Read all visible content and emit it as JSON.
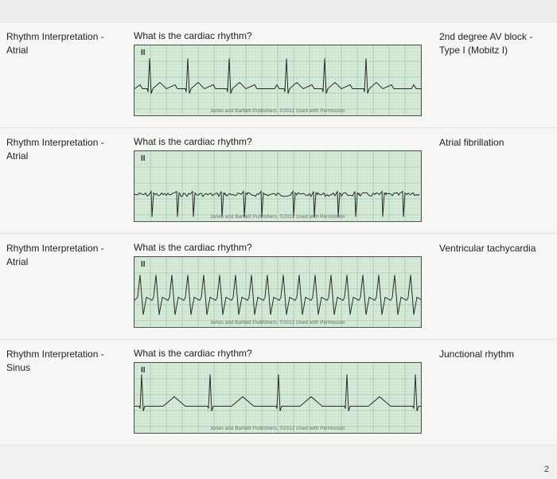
{
  "grid": {
    "bg_color": "#d9ecdb",
    "minor_color": "#bcd9c1",
    "major_color": "#9bc7a4",
    "minor_spacing": 4,
    "major_spacing": 20
  },
  "ecg_trace": {
    "stroke": "#2b2b2b",
    "stroke_width": 1
  },
  "attribution": "Jones and Bartlett Publishers. ©2012 Used with Permission",
  "page_number": "2",
  "cards": [
    {
      "category": "Rhythm Interpretation - Atrial",
      "question": "What is the cardiac rhythm?",
      "lead": "II",
      "answer": "2nd degree AV block - Type I (Mobitz I)",
      "waveform": "wenckebach"
    },
    {
      "category": "Rhythm Interpretation - Atrial",
      "question": "What is the cardiac rhythm?",
      "lead": "II",
      "answer": "Atrial fibrillation",
      "waveform": "afib"
    },
    {
      "category": "Rhythm Interpretation - Atrial",
      "question": "What is the cardiac rhythm?",
      "lead": "II",
      "answer": "Ventricular tachycardia",
      "waveform": "vtach"
    },
    {
      "category": "Rhythm Interpretation - Sinus",
      "question": "What is the cardiac rhythm?",
      "lead": "II",
      "answer": "Junctional rhythm",
      "waveform": "junctional"
    }
  ]
}
